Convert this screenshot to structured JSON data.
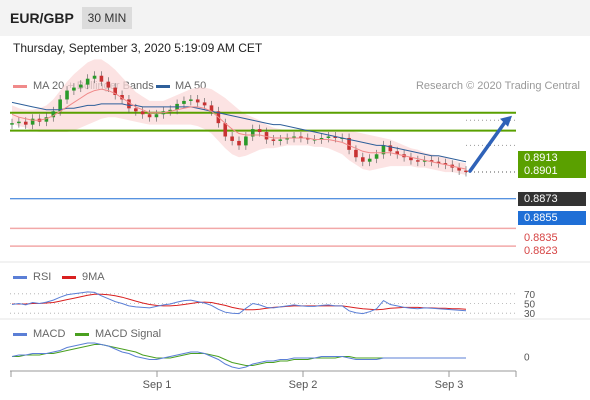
{
  "header": {
    "symbol": "EUR/GBP",
    "timeframe": "30 MIN"
  },
  "date_text": "Thursday, September 3, 2020 5:19:09 AM CET",
  "credit": "Research © 2020 Trading Central",
  "colors": {
    "ma20": "#f08a8a",
    "ma50": "#2e5f9a",
    "resistance": "#5aa000",
    "support": "#1f6fd6",
    "current": "#333333",
    "pivot": "#f2a8a8",
    "rsi": "#5b7fd6",
    "ma9": "#d92020",
    "macd": "#5b7fd6",
    "macd_signal": "#4aa020",
    "arrow": "#2f62b8"
  },
  "chart_data": [
    {
      "type": "line",
      "panel": "price",
      "legend": [
        {
          "name": "MA 20 + Bollinger Bands",
          "color": "#f08a8a"
        },
        {
          "name": "MA 50",
          "color": "#2e5f9a"
        }
      ],
      "x_ticks": [
        "Sep 1",
        "Sep 2",
        "Sep 3"
      ],
      "ylim": [
        0.8815,
        0.8925
      ],
      "price_levels": [
        {
          "label": "0.8913",
          "value": 0.8913,
          "kind": "resistance"
        },
        {
          "label": "0.8901",
          "value": 0.8901,
          "kind": "resistance"
        },
        {
          "label": "0.8873",
          "value": 0.8873,
          "kind": "current"
        },
        {
          "label": "0.8855",
          "value": 0.8855,
          "kind": "support"
        },
        {
          "label": "0.8835",
          "value": 0.8835,
          "kind": "pivot"
        },
        {
          "label": "0.8823",
          "value": 0.8823,
          "kind": "pivot"
        }
      ],
      "close": [
        0.8906,
        0.8907,
        0.8905,
        0.8909,
        0.8907,
        0.891,
        0.8914,
        0.8922,
        0.8928,
        0.893,
        0.8932,
        0.8936,
        0.8938,
        0.8934,
        0.893,
        0.8925,
        0.8922,
        0.8916,
        0.8914,
        0.8912,
        0.891,
        0.8912,
        0.8914,
        0.8915,
        0.8919,
        0.8921,
        0.8922,
        0.892,
        0.8918,
        0.8914,
        0.8906,
        0.8897,
        0.8894,
        0.8891,
        0.8897,
        0.8902,
        0.89,
        0.8895,
        0.8894,
        0.8895,
        0.8896,
        0.8897,
        0.8896,
        0.8895,
        0.8895,
        0.8896,
        0.8897,
        0.8896,
        0.8896,
        0.8888,
        0.8883,
        0.888,
        0.8882,
        0.8885,
        0.8891,
        0.8887,
        0.8885,
        0.8883,
        0.8881,
        0.888,
        0.8881,
        0.888,
        0.8879,
        0.8878,
        0.8876,
        0.8874,
        0.8873
      ],
      "ma20": [
        0.8912,
        0.891,
        0.8909,
        0.8908,
        0.8908,
        0.8909,
        0.8911,
        0.8914,
        0.8917,
        0.892,
        0.8923,
        0.8926,
        0.8928,
        0.8929,
        0.8928,
        0.8926,
        0.8923,
        0.892,
        0.8917,
        0.8915,
        0.8913,
        0.8913,
        0.8913,
        0.8914,
        0.8915,
        0.8916,
        0.8917,
        0.8917,
        0.8916,
        0.8914,
        0.891,
        0.8906,
        0.8902,
        0.8899,
        0.8898,
        0.8898,
        0.8898,
        0.8897,
        0.8896,
        0.8896,
        0.8896,
        0.8896,
        0.8896,
        0.8896,
        0.8895,
        0.8895,
        0.8895,
        0.8894,
        0.8893,
        0.8891,
        0.8889,
        0.8887,
        0.8886,
        0.8886,
        0.8886,
        0.8886,
        0.8885,
        0.8884,
        0.8883,
        0.8882,
        0.8881,
        0.888,
        0.8879,
        0.8878,
        0.8877,
        0.8876,
        0.8875
      ],
      "ma50": [
        0.892,
        0.8919,
        0.8918,
        0.8917,
        0.8916,
        0.8915,
        0.8915,
        0.8915,
        0.8916,
        0.8916,
        0.8917,
        0.8918,
        0.8918,
        0.8919,
        0.8919,
        0.8919,
        0.8919,
        0.8918,
        0.8918,
        0.8917,
        0.8917,
        0.8917,
        0.8917,
        0.8917,
        0.8917,
        0.8917,
        0.8917,
        0.8916,
        0.8915,
        0.8914,
        0.8913,
        0.8912,
        0.8911,
        0.891,
        0.8909,
        0.8908,
        0.8907,
        0.8906,
        0.8905,
        0.8905,
        0.8904,
        0.8903,
        0.8902,
        0.8901,
        0.89,
        0.8899,
        0.8898,
        0.8897,
        0.8896,
        0.8895,
        0.8894,
        0.8893,
        0.8892,
        0.8891,
        0.8891,
        0.889,
        0.8889,
        0.8888,
        0.8887,
        0.8886,
        0.8885,
        0.8884,
        0.8884,
        0.8883,
        0.8882,
        0.8881,
        0.888
      ],
      "band_width": [
        0.0006,
        0.0006,
        0.0006,
        0.0007,
        0.0008,
        0.0009,
        0.0011,
        0.0014,
        0.0017,
        0.0019,
        0.002,
        0.0021,
        0.0021,
        0.002,
        0.0018,
        0.0016,
        0.0014,
        0.0012,
        0.001,
        0.0009,
        0.0008,
        0.0008,
        0.0008,
        0.0009,
        0.001,
        0.0011,
        0.0012,
        0.0013,
        0.0014,
        0.0015,
        0.0016,
        0.0017,
        0.0017,
        0.0016,
        0.0014,
        0.0012,
        0.001,
        0.0008,
        0.0007,
        0.0006,
        0.0005,
        0.0005,
        0.0005,
        0.0005,
        0.0005,
        0.0005,
        0.0006,
        0.0007,
        0.0008,
        0.001,
        0.0011,
        0.0012,
        0.0012,
        0.0011,
        0.001,
        0.0009,
        0.0008,
        0.0007,
        0.0006,
        0.0006,
        0.0005,
        0.0005,
        0.0005,
        0.0005,
        0.0004,
        0.0004,
        0.0004
      ],
      "projection_target": 0.8913
    },
    {
      "type": "line",
      "panel": "rsi",
      "legend": [
        {
          "name": "RSI",
          "color": "#5b7fd6"
        },
        {
          "name": "9MA",
          "color": "#d92020"
        }
      ],
      "ylim": [
        20,
        80
      ],
      "levels": [
        {
          "label": "70",
          "value": 70
        },
        {
          "label": "50",
          "value": 50
        },
        {
          "label": "30",
          "value": 30
        }
      ],
      "rsi": [
        48,
        50,
        47,
        52,
        50,
        53,
        57,
        63,
        68,
        70,
        72,
        74,
        73,
        66,
        60,
        54,
        50,
        45,
        43,
        42,
        41,
        44,
        47,
        49,
        53,
        56,
        57,
        54,
        51,
        46,
        38,
        32,
        30,
        29,
        40,
        50,
        47,
        42,
        41,
        43,
        45,
        47,
        45,
        44,
        44,
        46,
        47,
        45,
        45,
        35,
        31,
        29,
        33,
        39,
        56,
        48,
        45,
        42,
        40,
        39,
        41,
        40,
        39,
        38,
        37,
        36,
        35
      ],
      "ma9": [
        49,
        49,
        49,
        50,
        50,
        51,
        52,
        55,
        58,
        61,
        64,
        67,
        69,
        69,
        68,
        66,
        63,
        59,
        55,
        51,
        48,
        46,
        45,
        45,
        46,
        48,
        50,
        52,
        53,
        52,
        49,
        46,
        42,
        39,
        37,
        37,
        38,
        40,
        42,
        43,
        44,
        45,
        45,
        45,
        45,
        45,
        45,
        45,
        45,
        43,
        41,
        39,
        38,
        37,
        38,
        40,
        41,
        42,
        42,
        42,
        41,
        41,
        40,
        40,
        39,
        39,
        38
      ]
    },
    {
      "type": "line",
      "panel": "macd",
      "legend": [
        {
          "name": "MACD",
          "color": "#5b7fd6"
        },
        {
          "name": "MACD Signal",
          "color": "#4aa020"
        }
      ],
      "zero_label": "0",
      "ylim": [
        -0.0009,
        0.0011
      ],
      "macd": [
        0.0,
        0.0001,
        0.0001,
        0.0002,
        0.0002,
        0.0002,
        0.0003,
        0.0004,
        0.0006,
        0.0007,
        0.0008,
        0.0009,
        0.0009,
        0.0008,
        0.0007,
        0.0005,
        0.0003,
        0.0002,
        0.0,
        -0.0001,
        -0.0002,
        -0.0002,
        -0.0001,
        0.0,
        0.0001,
        0.0002,
        0.0003,
        0.0003,
        0.0002,
        0.0,
        -0.0002,
        -0.0005,
        -0.0007,
        -0.0008,
        -0.0007,
        -0.0005,
        -0.0004,
        -0.0003,
        -0.0003,
        -0.0002,
        -0.0002,
        -0.0001,
        -0.0001,
        -0.0001,
        -0.0001,
        0.0,
        0.0,
        0.0,
        0.0,
        -0.0001,
        -0.0002,
        -0.0002,
        -0.0002,
        -0.0002,
        -0.0001,
        -0.0001,
        -0.0001,
        -0.0001,
        -0.0001,
        -0.0001,
        -0.0001,
        -0.0001,
        -0.0001,
        -0.0001,
        -0.0001,
        -0.0001,
        -0.0001
      ],
      "signal": [
        0.0,
        0.0,
        0.0001,
        0.0001,
        0.0001,
        0.0002,
        0.0002,
        0.0003,
        0.0004,
        0.0005,
        0.0006,
        0.0007,
        0.0008,
        0.0008,
        0.0007,
        0.0006,
        0.0005,
        0.0004,
        0.0003,
        0.0001,
        0.0,
        -0.0001,
        -0.0001,
        -0.0001,
        0.0,
        0.0001,
        0.0002,
        0.0002,
        0.0002,
        0.0001,
        0.0,
        -0.0002,
        -0.0004,
        -0.0005,
        -0.0006,
        -0.0006,
        -0.0005,
        -0.0004,
        -0.0004,
        -0.0003,
        -0.0003,
        -0.0002,
        -0.0002,
        -0.0002,
        -0.0001,
        -0.0001,
        -0.0001,
        -0.0001,
        0.0,
        0.0,
        -0.0001,
        -0.0001,
        -0.0001,
        -0.0001,
        -0.0001,
        -0.0001,
        -0.0001,
        -0.0001,
        -0.0001,
        -0.0001,
        -0.0001,
        -0.0001,
        -0.0001,
        -0.0001,
        -0.0001,
        -0.0001,
        -0.0001
      ]
    }
  ]
}
